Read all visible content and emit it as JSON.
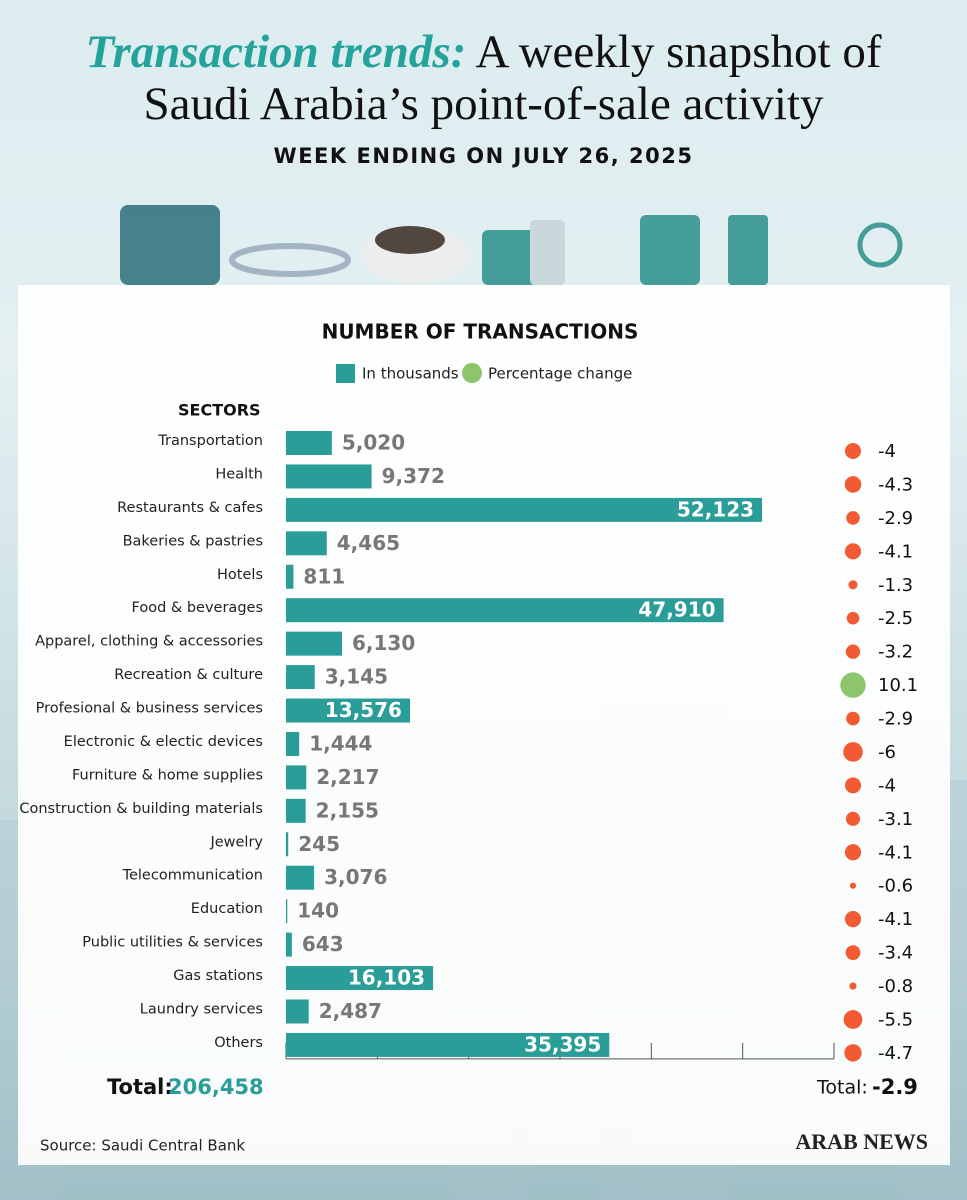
{
  "header": {
    "title_italic": "Transaction trends:",
    "title": "A weekly snapshot of Saudi Arabia’s point-of-sale activity",
    "subtitle": "WEEK ENDING ON JULY 26, 2025"
  },
  "chart_data": {
    "type": "bar",
    "title": "NUMBER OF TRANSACTIONS",
    "axis_label": "SECTORS",
    "categories": [
      "Transportation",
      "Health",
      "Restaurants & cafes",
      "Bakeries & pastries",
      "Hotels",
      "Food & beverages",
      "Apparel, clothing & accessories",
      "Recreation & culture",
      "Profesional & business services",
      "Electronic & electic devices",
      "Furniture & home supplies",
      "Construction & building materials",
      "Jewelry",
      "Telecommunication",
      "Education",
      "Public utilities & services",
      "Gas stations",
      "Laundry services",
      "Others"
    ],
    "series": [
      {
        "name": "In thousands",
        "color": "#2a9d98",
        "values": [
          5020,
          9372,
          52123,
          4465,
          811,
          47910,
          6130,
          3145,
          13576,
          1444,
          2217,
          2155,
          245,
          3076,
          140,
          643,
          16103,
          2487,
          35395
        ],
        "value_labels": [
          "5,020",
          "9,372",
          "52,123",
          "4,465",
          "811",
          "47,910",
          "6,130",
          "3,145",
          "13,576",
          "1,444",
          "2,217",
          "2,155",
          "245",
          "3,076",
          "140",
          "643",
          "16,103",
          "2,487",
          "35,395"
        ]
      },
      {
        "name": "Percentage change",
        "color": "#8cc56a",
        "negative_color": "#f15a32",
        "values": [
          -4,
          -4.3,
          -2.9,
          -4.1,
          -1.3,
          -2.5,
          -3.2,
          10.1,
          -2.9,
          -6,
          -4,
          -3.1,
          -4.1,
          -0.6,
          -4.1,
          -3.4,
          -0.8,
          -5.5,
          -4.7
        ]
      }
    ],
    "xlim": [
      0,
      60000
    ],
    "xticks": [
      0,
      10000,
      20000,
      30000,
      40000,
      50000,
      60000
    ],
    "total_label": "Total:",
    "total_transactions": "206,458",
    "total_change": -2.9
  },
  "footer": {
    "source": "Source: Saudi Central Bank",
    "brand": "ARAB NEWS"
  }
}
